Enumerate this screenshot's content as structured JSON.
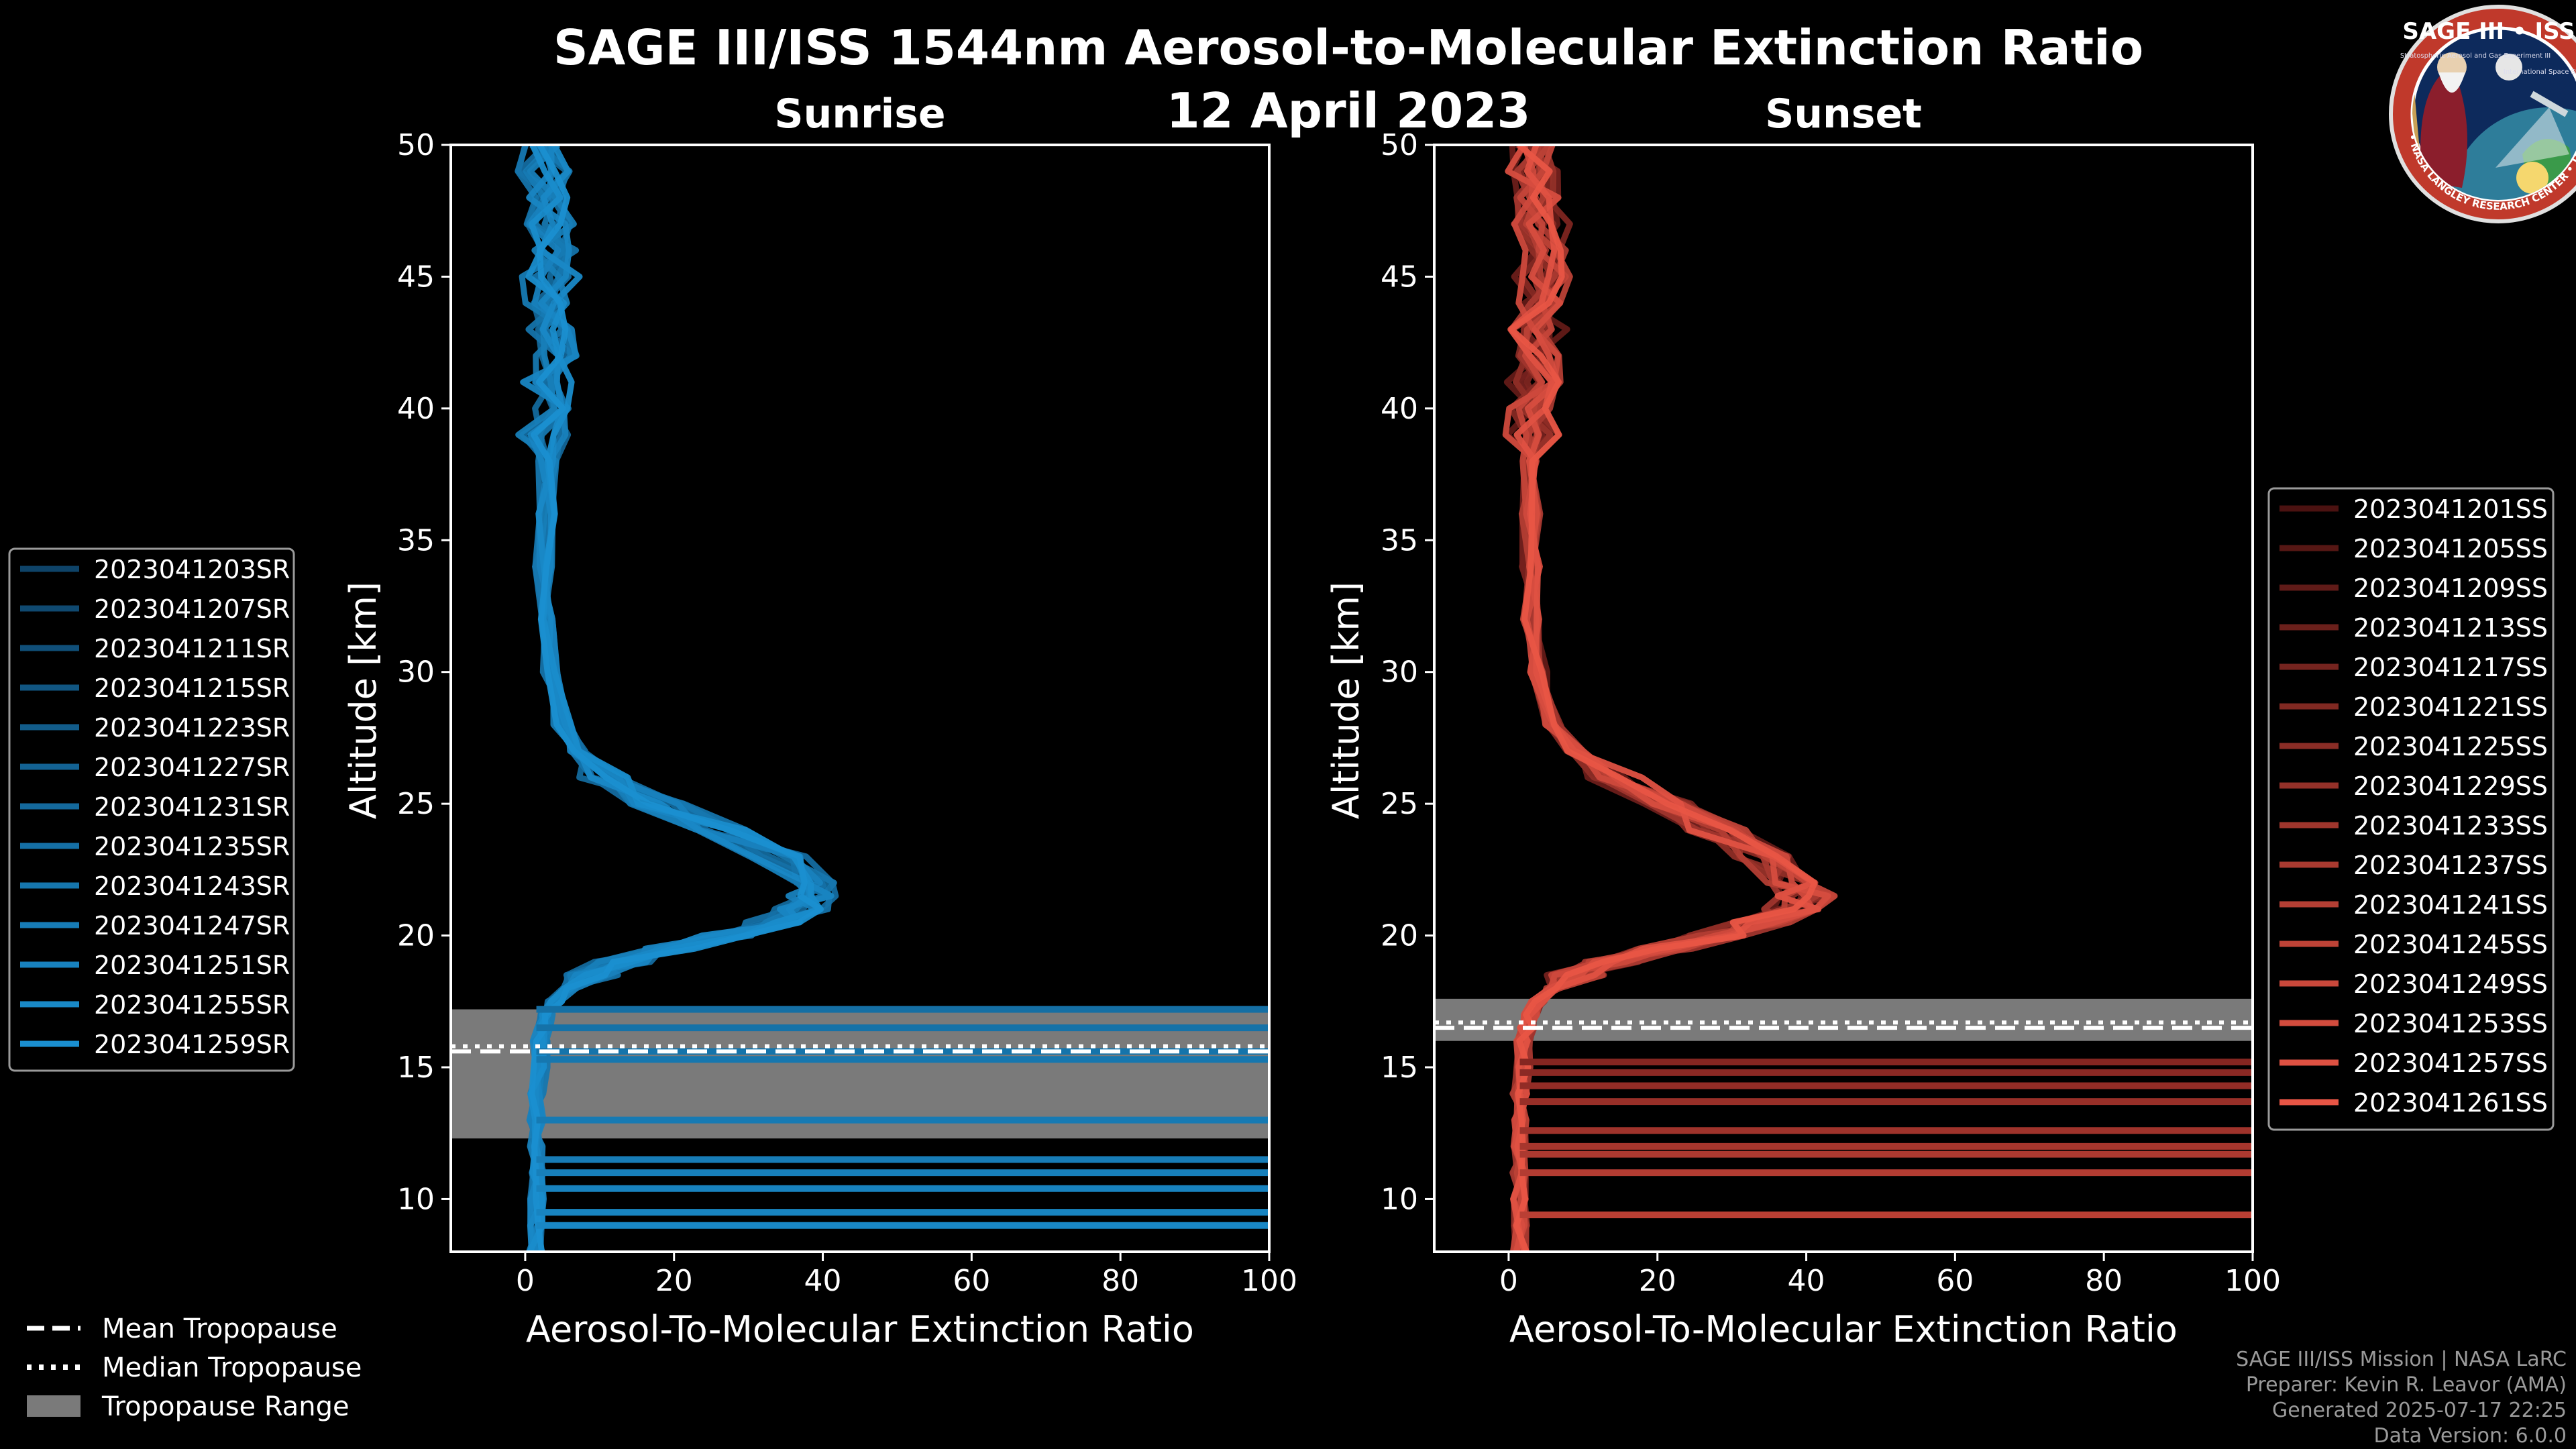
{
  "title": "SAGE III/ISS 1544nm Aerosol-to-Molecular Extinction Ratio",
  "date": "12 April 2023",
  "logo": {
    "text": "SAGE III • ISS",
    "ring_text": "BALL • NASA LANGLEY RESEARCH CENTER • TAS-I • ESA",
    "subtitle": "Stratospheric Aerosol and Gas Experiment III",
    "station": "International Space Station"
  },
  "colors": {
    "sunrise": "#1a8fd0",
    "sunset": "#e85545",
    "background": "#000000",
    "tropo_range": "#7a7a7a"
  },
  "credits": [
    "SAGE III/ISS Mission | NASA LaRC",
    "Preparer: Kevin R. Leavor (AMA)",
    "Generated 2025-07-17 22:25",
    "Data Version: 6.0.0"
  ],
  "tropopause_legend": [
    "Mean Tropopause",
    "Median Tropopause",
    "Tropopause Range"
  ],
  "chart_data": [
    {
      "type": "line",
      "panel": "sunrise",
      "title": "Sunrise",
      "xlabel": "Aerosol-To-Molecular Extinction Ratio",
      "ylabel": "Altitude [km]",
      "xlim": [
        -10,
        100
      ],
      "ylim": [
        8,
        50
      ],
      "xticks": [
        0,
        20,
        40,
        60,
        80,
        100
      ],
      "yticks": [
        10,
        15,
        20,
        25,
        30,
        35,
        40,
        45,
        50
      ],
      "tropopause": {
        "mean": 15.6,
        "median": 15.8,
        "range": [
          12.3,
          17.2
        ]
      },
      "legend": [
        "2023041203SR",
        "2023041207SR",
        "2023041211SR",
        "2023041215SR",
        "2023041223SR",
        "2023041227SR",
        "2023041231SR",
        "2023041235SR",
        "2023041243SR",
        "2023041247SR",
        "2023041251SR",
        "2023041255SR",
        "2023041259SR"
      ],
      "profile": {
        "alt": [
          50,
          48,
          46,
          44,
          42,
          40,
          38,
          36,
          34,
          32,
          30,
          28,
          27,
          26,
          25,
          24,
          23,
          22,
          21.5,
          21,
          20.5,
          20,
          19.5,
          19,
          18.5,
          18,
          17.5,
          17,
          16.5,
          16,
          15,
          14,
          13,
          12,
          11,
          10,
          9,
          8
        ],
        "ratio": [
          2,
          3,
          4,
          3,
          4,
          3,
          3,
          3,
          2.5,
          3,
          3.5,
          5,
          7,
          11,
          18,
          27,
          34,
          38,
          39,
          37,
          33,
          27,
          20,
          13,
          9,
          6,
          4,
          3,
          2.5,
          2,
          2,
          1.5,
          1.5,
          1.5,
          1.5,
          1.5,
          1.5,
          1.5
        ]
      },
      "cloud_alts": [
        17.2,
        16.5,
        15.6,
        15.3,
        13.0,
        11.5,
        11.0,
        10.4,
        9.5,
        9.0
      ]
    },
    {
      "type": "line",
      "panel": "sunset",
      "title": "Sunset",
      "xlabel": "Aerosol-To-Molecular Extinction Ratio",
      "ylabel": "Altitude [km]",
      "xlim": [
        -10,
        100
      ],
      "ylim": [
        8,
        50
      ],
      "xticks": [
        0,
        20,
        40,
        60,
        80,
        100
      ],
      "yticks": [
        10,
        15,
        20,
        25,
        30,
        35,
        40,
        45,
        50
      ],
      "tropopause": {
        "mean": 16.5,
        "median": 16.7,
        "range": [
          16.0,
          17.6
        ]
      },
      "legend": [
        "2023041201SS",
        "2023041205SS",
        "2023041209SS",
        "2023041213SS",
        "2023041217SS",
        "2023041221SS",
        "2023041225SS",
        "2023041229SS",
        "2023041233SS",
        "2023041237SS",
        "2023041241SS",
        "2023041245SS",
        "2023041249SS",
        "2023041253SS",
        "2023041257SS",
        "2023041261SS"
      ],
      "profile": {
        "alt": [
          50,
          48,
          46,
          44,
          42,
          40,
          38,
          36,
          34,
          32,
          30,
          28,
          27,
          26,
          25,
          24,
          23,
          22,
          21.5,
          21,
          20.5,
          20,
          19.5,
          19,
          18.5,
          18,
          17.5,
          17,
          16.5,
          16,
          15,
          14,
          13,
          12,
          11,
          10,
          9,
          8
        ],
        "ratio": [
          3,
          4,
          5,
          4,
          4,
          3,
          3,
          3,
          3,
          3,
          4,
          6,
          9,
          14,
          21,
          28,
          34,
          38,
          40,
          38,
          34,
          28,
          21,
          14,
          9,
          6,
          4,
          3,
          2.5,
          2,
          2,
          1.5,
          1.5,
          1.5,
          1.5,
          1.5,
          1.5,
          1.5
        ]
      },
      "cloud_alts": [
        15.2,
        14.8,
        14.3,
        13.7,
        12.6,
        12.0,
        11.7,
        11.0,
        9.4
      ]
    }
  ]
}
